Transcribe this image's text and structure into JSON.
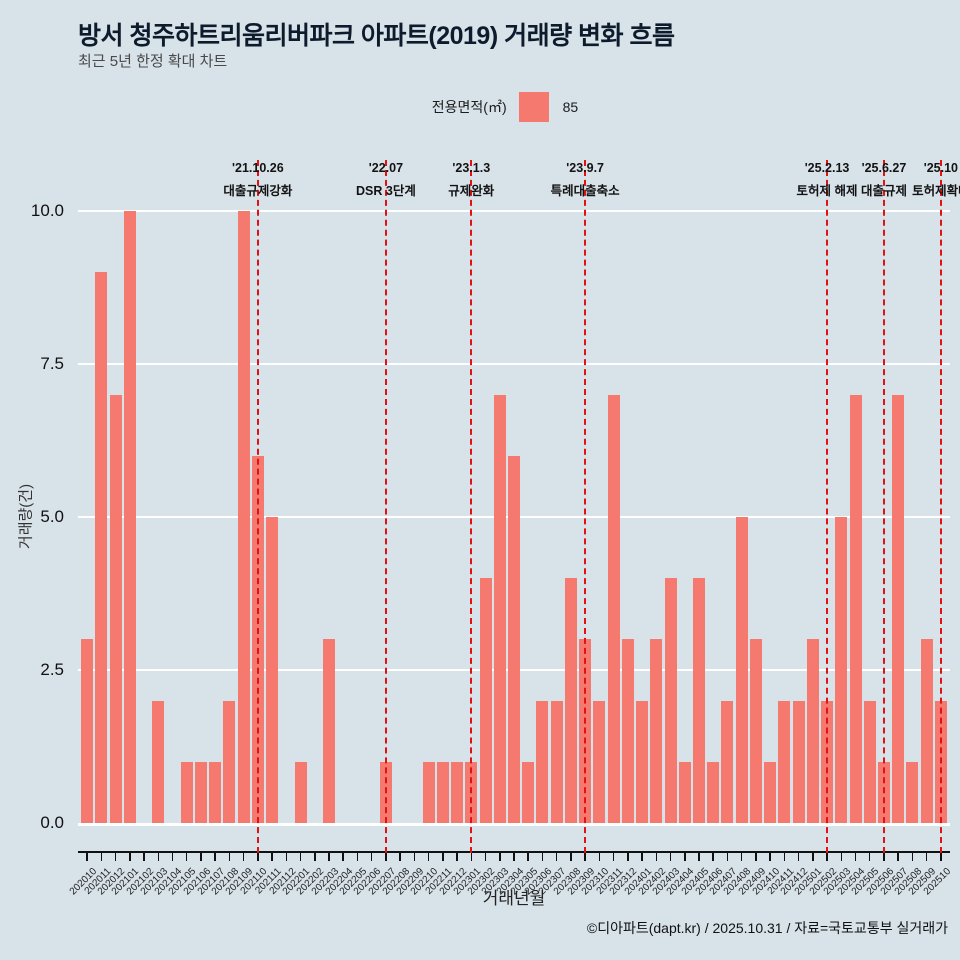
{
  "title": "방서 청주하트리움리버파크 아파트(2019) 거래량 변화 흐름",
  "subtitle": "최근 5년 한정 확대 차트",
  "legend": {
    "label": "전용면적(㎡)",
    "value": "85",
    "swatch_color": "#f5796f"
  },
  "footer": "©디아파트(dapt.kr) / 2025.10.31 / 자료=국토교통부 실거래가",
  "colors": {
    "background": "#d8e2e9",
    "bar": "#f5796f",
    "annotation_line": "#e01212",
    "gridline": "#ffffff"
  },
  "chart_data": {
    "type": "bar",
    "title": "방서 청주하트리움리버파크 아파트(2019) 거래량 변화 흐름",
    "subtitle": "최근 5년 한정 확대 차트",
    "xlabel": "거래년월",
    "ylabel": "거래량(건)",
    "ylim": [
      0,
      10
    ],
    "yticks": [
      0,
      2.5,
      5,
      7.5,
      10
    ],
    "ytick_labels": [
      "0.0",
      "2.5",
      "5.0",
      "7.5",
      "10.0"
    ],
    "grid": true,
    "legend_entries": [
      {
        "name": "85",
        "color": "#f5796f"
      }
    ],
    "legend_position": "top",
    "categories": [
      "202010",
      "202011",
      "202012",
      "202101",
      "202102",
      "202103",
      "202104",
      "202105",
      "202106",
      "202107",
      "202108",
      "202109",
      "202110",
      "202111",
      "202112",
      "202201",
      "202202",
      "202203",
      "202204",
      "202205",
      "202206",
      "202207",
      "202208",
      "202209",
      "202210",
      "202211",
      "202212",
      "202301",
      "202302",
      "202303",
      "202304",
      "202305",
      "202306",
      "202307",
      "202308",
      "202309",
      "202310",
      "202311",
      "202312",
      "202401",
      "202402",
      "202403",
      "202404",
      "202405",
      "202406",
      "202407",
      "202408",
      "202409",
      "202410",
      "202411",
      "202412",
      "202501",
      "202502",
      "202503",
      "202504",
      "202505",
      "202506",
      "202507",
      "202508",
      "202509",
      "202510"
    ],
    "values": [
      3,
      9,
      7,
      10,
      0,
      2,
      0,
      1,
      1,
      1,
      2,
      10,
      6,
      5,
      0,
      1,
      0,
      3,
      0,
      0,
      0,
      1,
      0,
      0,
      1,
      1,
      1,
      1,
      4,
      7,
      6,
      1,
      2,
      2,
      4,
      3,
      2,
      7,
      3,
      2,
      3,
      4,
      1,
      4,
      1,
      2,
      5,
      3,
      1,
      2,
      2,
      3,
      2,
      5,
      7,
      2,
      1,
      7,
      1,
      3,
      2
    ],
    "annotations": [
      {
        "month": "202110",
        "date": "'21.10.26",
        "label": "대출규제강화"
      },
      {
        "month": "202207",
        "date": "'22.07",
        "label": "DSR 3단계"
      },
      {
        "month": "202301",
        "date": "'23.1.3",
        "label": "규제완화"
      },
      {
        "month": "202309",
        "date": "'23.9.7",
        "label": "특례대출축소"
      },
      {
        "month": "202502",
        "date": "'25.2.13",
        "label": "토허제 해제"
      },
      {
        "month": "202506",
        "date": "'25.6.27",
        "label": "대출규제"
      },
      {
        "month": "202510",
        "date": "'25.10",
        "label": "토허제확대"
      }
    ]
  }
}
